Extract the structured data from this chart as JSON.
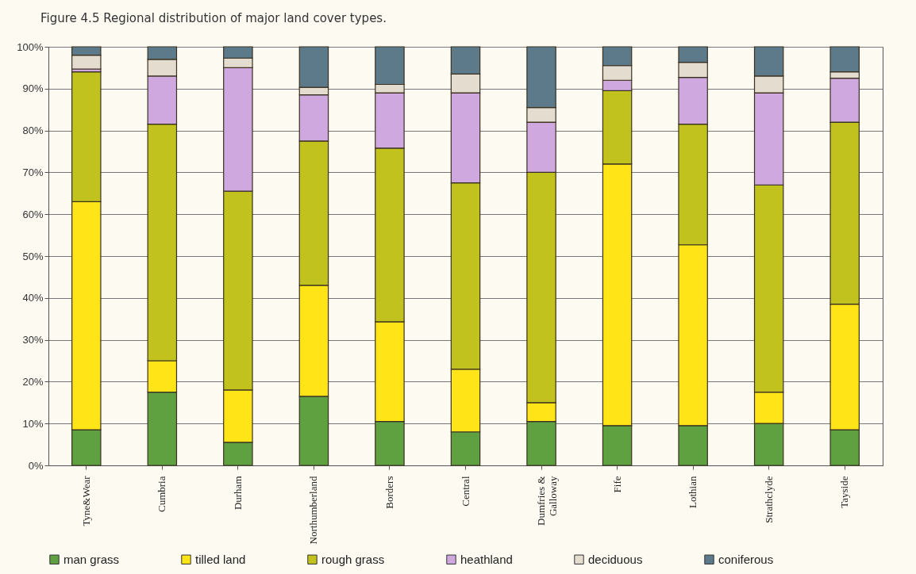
{
  "chart_data": {
    "type": "bar",
    "title": "Figure 4.5  Regional distribution of major land cover types.",
    "stacked": true,
    "grid": "y",
    "legend": "bottom",
    "categories": [
      "Tyne&Wear",
      "Cumbria",
      "Durham",
      "Northumberland",
      "Borders",
      "Central",
      "Dumfries & Galloway",
      "Fife",
      "Lothian",
      "Strathclyde",
      "Tayside"
    ],
    "ylim": [
      0,
      100
    ],
    "yticks": [
      {
        "value": 0,
        "label": "0%"
      },
      {
        "value": 10,
        "label": "10%"
      },
      {
        "value": 20,
        "label": "20%"
      },
      {
        "value": 30,
        "label": "30%"
      },
      {
        "value": 40,
        "label": "40%"
      },
      {
        "value": 50,
        "label": "50%"
      },
      {
        "value": 60,
        "label": "60%"
      },
      {
        "value": 70,
        "label": "70%"
      },
      {
        "value": 80,
        "label": "80%"
      },
      {
        "value": 90,
        "label": "90%"
      },
      {
        "value": 100,
        "label": "100%"
      }
    ],
    "series": [
      {
        "name": "man grass",
        "color": "#5fa040",
        "values": [
          8.5,
          17.5,
          5.5,
          16.5,
          10.5,
          8,
          10.5,
          9.5,
          9.5,
          10,
          8.5
        ]
      },
      {
        "name": "tilled land",
        "color": "#ffe418",
        "values": [
          54.5,
          7.5,
          12.5,
          26.5,
          23.8,
          15,
          4.5,
          62.5,
          43.2,
          7.5,
          30
        ]
      },
      {
        "name": "rough grass",
        "color": "#c2c21e",
        "values": [
          31,
          56.5,
          47.5,
          34.5,
          41.5,
          44.5,
          55,
          17.5,
          28.8,
          49.5,
          43.5
        ]
      },
      {
        "name": "heathland",
        "color": "#cfa8e0",
        "values": [
          0.7,
          11.5,
          29.5,
          11,
          13.2,
          21.5,
          12,
          2.5,
          11.2,
          22,
          10.5
        ]
      },
      {
        "name": "deciduous",
        "color": "#e4ddcf",
        "values": [
          3.3,
          4,
          2.3,
          1.8,
          2,
          4.5,
          3.5,
          3.5,
          3.6,
          4,
          1.5
        ]
      },
      {
        "name": "coniferous",
        "color": "#5c7a8a",
        "values": [
          2,
          3,
          2.7,
          9.7,
          9,
          6.5,
          14.5,
          4.5,
          3.7,
          7,
          6
        ]
      }
    ]
  }
}
